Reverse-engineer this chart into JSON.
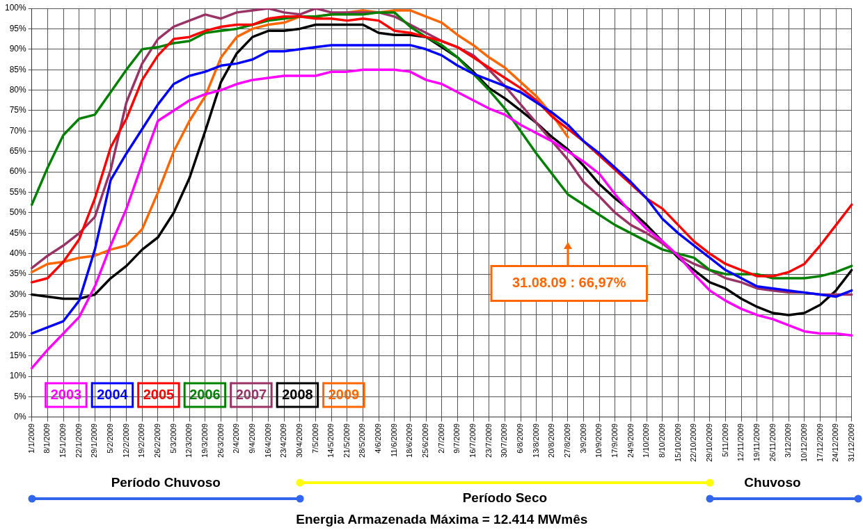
{
  "chart_data": {
    "type": "line",
    "categories": [
      "1/1/2009",
      "8/1/2009",
      "15/1/2009",
      "22/1/2009",
      "29/1/2009",
      "5/2/2009",
      "12/2/2009",
      "19/2/2009",
      "26/2/2009",
      "5/3/2009",
      "12/3/2009",
      "19/3/2009",
      "26/3/2009",
      "2/4/2009",
      "9/4/2009",
      "16/4/2009",
      "23/4/2009",
      "30/4/2009",
      "7/5/2009",
      "14/5/2009",
      "21/5/2009",
      "28/5/2009",
      "4/6/2009",
      "11/6/2009",
      "18/6/2009",
      "25/6/2009",
      "2/7/2009",
      "9/7/2009",
      "16/7/2009",
      "23/7/2009",
      "30/7/2009",
      "6/8/2009",
      "13/8/2009",
      "20/8/2009",
      "27/8/2009",
      "3/9/2009",
      "10/9/2009",
      "17/9/2009",
      "24/9/2009",
      "1/10/2009",
      "8/10/2009",
      "15/10/2009",
      "22/10/2009",
      "29/10/2009",
      "5/11/2009",
      "12/11/2009",
      "19/11/2009",
      "26/11/2009",
      "3/12/2009",
      "10/12/2009",
      "17/12/2009",
      "24/12/2009",
      "31/12/2009"
    ],
    "series": [
      {
        "name": "2003",
        "color": "#ff00ff",
        "values": [
          12,
          16.5,
          20.5,
          24.5,
          32,
          42,
          51,
          62,
          72.5,
          75,
          77.5,
          79,
          80,
          81.5,
          82.5,
          83,
          83.5,
          83.5,
          83.5,
          84.5,
          84.5,
          85,
          85,
          85,
          84.5,
          82.5,
          81.5,
          79.5,
          77.5,
          75.5,
          74,
          71.5,
          69.5,
          67.5,
          65,
          62.5,
          59.5,
          54.5,
          50,
          46,
          43,
          39.5,
          35,
          31,
          28.5,
          26.5,
          25,
          24,
          22.5,
          21,
          20.5,
          20.5,
          20
        ]
      },
      {
        "name": "2004",
        "color": "#0000ff",
        "values": [
          20.5,
          22,
          23.5,
          28.5,
          41,
          58,
          64.5,
          70.5,
          76.5,
          81.5,
          83.5,
          84.5,
          86,
          86.5,
          87.5,
          89.5,
          89.5,
          90,
          90.5,
          91,
          91,
          91,
          91,
          91,
          91,
          90,
          88.5,
          86,
          84,
          82.5,
          81,
          79.5,
          77,
          74.5,
          71.5,
          67.5,
          64.5,
          61,
          57.5,
          53.5,
          48.5,
          45,
          42,
          39,
          36,
          34,
          32,
          31.5,
          31,
          30.5,
          30,
          29.5,
          31
        ]
      },
      {
        "name": "2005",
        "color": "#ff0000",
        "values": [
          33,
          34,
          38,
          43.5,
          53.5,
          66,
          73,
          82.5,
          88.5,
          92.5,
          93,
          94.5,
          95.5,
          96,
          96,
          97.5,
          98,
          98,
          97.5,
          97.5,
          97,
          97.5,
          97,
          94.5,
          94,
          93,
          92,
          90.5,
          88,
          85.5,
          83,
          80.5,
          77.5,
          73.5,
          70.5,
          67.5,
          64,
          60.5,
          57,
          53.5,
          51,
          47,
          43,
          40,
          37.5,
          36,
          34.5,
          34.5,
          35.5,
          37.5,
          42,
          47,
          52
        ]
      },
      {
        "name": "2006",
        "color": "#008000",
        "values": [
          52,
          61,
          69,
          73,
          74,
          79.5,
          85,
          90,
          90.5,
          91.5,
          92,
          94,
          94.5,
          95,
          96,
          97,
          97.5,
          98,
          98,
          98.5,
          98.5,
          98.5,
          99,
          99,
          95.5,
          93,
          91,
          88,
          84,
          80,
          75.5,
          70,
          64.5,
          59.5,
          54.5,
          52,
          49.5,
          47,
          45,
          43,
          41,
          40,
          39,
          36,
          35,
          35,
          35,
          34,
          34,
          34,
          34.5,
          35.5,
          37
        ]
      },
      {
        "name": "2007",
        "color": "#993366",
        "values": [
          36.5,
          39.5,
          42,
          45,
          49,
          60.5,
          77,
          86.5,
          92.5,
          95.5,
          97,
          98.5,
          97.5,
          99,
          99.5,
          100,
          99,
          98.5,
          100,
          99,
          99,
          99,
          99,
          98,
          96,
          94,
          92,
          90.5,
          88.5,
          85,
          81,
          76.5,
          72,
          67.5,
          63,
          57.5,
          54,
          50,
          47,
          45,
          42.5,
          39.5,
          37.5,
          36,
          34,
          33,
          31.5,
          31,
          30.5,
          30.5,
          30,
          30,
          30
        ]
      },
      {
        "name": "2008",
        "color": "#000000",
        "values": [
          30,
          29.5,
          29,
          29,
          30,
          34,
          37,
          41,
          44,
          50,
          58.5,
          70,
          82,
          89,
          93,
          94.5,
          94.5,
          95,
          96,
          96,
          96,
          96,
          94,
          93.5,
          93.5,
          93,
          90.5,
          88,
          84.5,
          80.5,
          78,
          75,
          72,
          68.5,
          65.5,
          61.5,
          57,
          53.5,
          50.5,
          47,
          43,
          39,
          36,
          33,
          31.5,
          29,
          27,
          25.5,
          25,
          25.5,
          27.5,
          31,
          36
        ]
      },
      {
        "name": "2009",
        "color": "#ff6600",
        "values": [
          35.5,
          37.5,
          38,
          39,
          39.5,
          41,
          42,
          46,
          55,
          65,
          72.5,
          78.5,
          88,
          93,
          95,
          96,
          96.5,
          98,
          98,
          98.5,
          99,
          99.5,
          99,
          99.5,
          99.5,
          98,
          96.5,
          93.5,
          91,
          88,
          85.5,
          82,
          78.5,
          74,
          68.5,
          null,
          null,
          null,
          null,
          null,
          null,
          null,
          null,
          null,
          null,
          null,
          null,
          null,
          null,
          null,
          null,
          null,
          null
        ]
      }
    ],
    "ylim": [
      0,
      100
    ],
    "yticks": [
      {
        "value": 0,
        "label": "0%"
      },
      {
        "value": 5,
        "label": "5%"
      },
      {
        "value": 10,
        "label": "10%"
      },
      {
        "value": 15,
        "label": "15%"
      },
      {
        "value": 20,
        "label": "20%"
      },
      {
        "value": 25,
        "label": "25%"
      },
      {
        "value": 30,
        "label": "30%"
      },
      {
        "value": 35,
        "label": "35%"
      },
      {
        "value": 40,
        "label": "40%"
      },
      {
        "value": 45,
        "label": "45%"
      },
      {
        "value": 50,
        "label": "50%"
      },
      {
        "value": 55,
        "label": "55%"
      },
      {
        "value": 60,
        "label": "60%"
      },
      {
        "value": 65,
        "label": "65%"
      },
      {
        "value": 70,
        "label": "70%"
      },
      {
        "value": 75,
        "label": "75%"
      },
      {
        "value": 80,
        "label": "80%"
      },
      {
        "value": 85,
        "label": "85%"
      },
      {
        "value": 90,
        "label": "90%"
      },
      {
        "value": 95,
        "label": "95%"
      },
      {
        "value": 100,
        "label": "100%"
      }
    ],
    "grid": true,
    "legend": "bottom left",
    "marker": "none",
    "annotations": [
      "31.08.09 : 66,97%",
      "Período Chuvoso",
      "Período Seco",
      "Chuvoso",
      "Energia Armazenada Máxima = 12.414 MWmês"
    ]
  }
}
